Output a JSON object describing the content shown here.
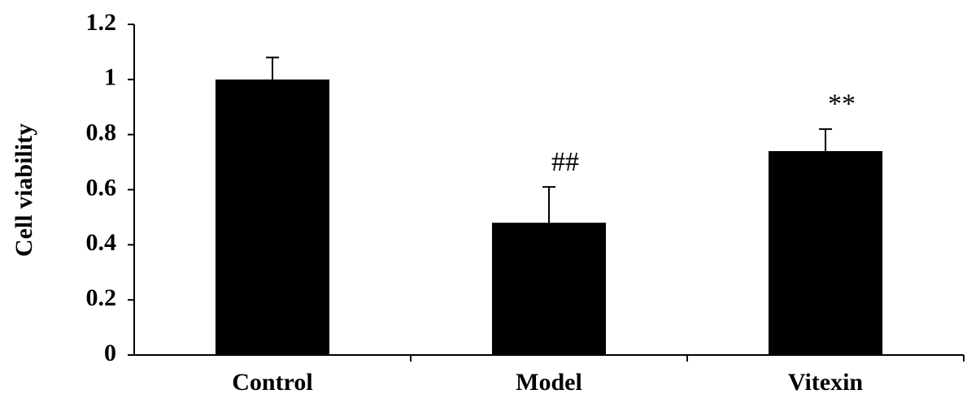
{
  "chart_data": {
    "type": "bar",
    "ylabel": "Cell viability",
    "categories": [
      "Control",
      "Model",
      "Vitexin"
    ],
    "values": [
      1.0,
      0.48,
      0.74
    ],
    "errors": [
      0.08,
      0.13,
      0.08
    ],
    "value_annotations": [
      null,
      "##",
      "**"
    ],
    "color": "#000000",
    "ylim": [
      0,
      1.2
    ],
    "yticks": [
      0,
      0.2,
      0.4,
      0.6,
      0.8,
      1,
      1.2
    ]
  }
}
